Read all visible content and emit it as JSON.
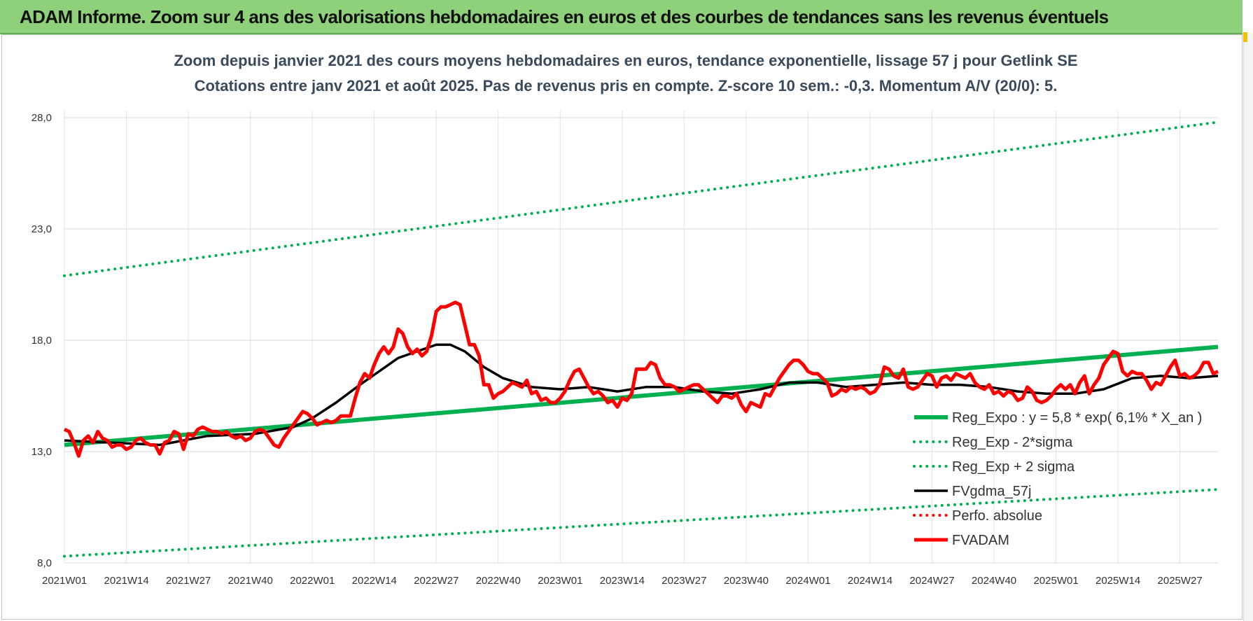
{
  "banner": {
    "title": "ADAM Informe. Zoom sur 4 ans des valorisations hebdomadaires en euros et des courbes de tendances sans les revenus éventuels"
  },
  "chart_data": {
    "type": "line",
    "subtitle_line1": "Zoom depuis janvier 2021 des cours moyens hebdomadaires en euros, tendance exponentielle, lissage 57 j pour Getlink SE",
    "subtitle_line2": "Cotations entre janv 2021 et août 2025.  Pas de revenus pris en compte. Z-score 10 sem.: -0,3. Momentum A/V (20/0): 5.",
    "ylim": [
      8.0,
      28.0
    ],
    "y_ticks": [
      "8,0",
      "13,0",
      "18,0",
      "23,0",
      "28,0"
    ],
    "y_tick_values": [
      8,
      13,
      18,
      23,
      28
    ],
    "x_ticks": [
      "2021W01",
      "2021W14",
      "2021W27",
      "2021W40",
      "2022W01",
      "2022W14",
      "2022W27",
      "2022W40",
      "2023W01",
      "2023W14",
      "2023W27",
      "2023W40",
      "2024W01",
      "2024W14",
      "2024W27",
      "2024W40",
      "2025W01",
      "2025W14",
      "2025W27"
    ],
    "x_tick_weeks": [
      0,
      13,
      26,
      39,
      52,
      65,
      78,
      91,
      104,
      117,
      130,
      143,
      156,
      169,
      182,
      195,
      208,
      221,
      234
    ],
    "n_weeks": 243,
    "grid": true,
    "legend_placement": "bottom-right",
    "series": [
      {
        "name": "Reg_Expo : y = 5,8 * exp( 6,1% *  X_an )",
        "color": "#00b050",
        "style": "solid",
        "points": [
          [
            0,
            13.3
          ],
          [
            242,
            17.7
          ]
        ]
      },
      {
        "name": "Reg_Exp - 2*sigma",
        "color": "#00b050",
        "style": "dotted",
        "points": [
          [
            0,
            8.3
          ],
          [
            242,
            11.3
          ]
        ]
      },
      {
        "name": "Reg_Exp + 2 sigma",
        "color": "#00b050",
        "style": "dotted",
        "points": [
          [
            0,
            20.9
          ],
          [
            242,
            27.8
          ]
        ]
      },
      {
        "name": "FVgdma_57j",
        "color": "#000000",
        "style": "solid",
        "points": [
          [
            0,
            13.5
          ],
          [
            10,
            13.4
          ],
          [
            20,
            13.3
          ],
          [
            30,
            13.7
          ],
          [
            40,
            13.8
          ],
          [
            48,
            14.1
          ],
          [
            52,
            14.5
          ],
          [
            57,
            15.2
          ],
          [
            62,
            16.0
          ],
          [
            66,
            16.6
          ],
          [
            70,
            17.2
          ],
          [
            74,
            17.5
          ],
          [
            78,
            17.8
          ],
          [
            81,
            17.8
          ],
          [
            84,
            17.5
          ],
          [
            88,
            16.8
          ],
          [
            92,
            16.3
          ],
          [
            98,
            15.9
          ],
          [
            104,
            15.8
          ],
          [
            110,
            15.9
          ],
          [
            116,
            15.7
          ],
          [
            122,
            15.9
          ],
          [
            128,
            15.9
          ],
          [
            134,
            15.7
          ],
          [
            140,
            15.6
          ],
          [
            146,
            15.8
          ],
          [
            152,
            16.1
          ],
          [
            158,
            16.1
          ],
          [
            164,
            15.9
          ],
          [
            170,
            16.0
          ],
          [
            176,
            16.1
          ],
          [
            182,
            16.0
          ],
          [
            188,
            16.0
          ],
          [
            194,
            15.9
          ],
          [
            200,
            15.7
          ],
          [
            206,
            15.6
          ],
          [
            212,
            15.6
          ],
          [
            218,
            15.8
          ],
          [
            224,
            16.3
          ],
          [
            230,
            16.4
          ],
          [
            236,
            16.3
          ],
          [
            242,
            16.4
          ]
        ]
      },
      {
        "name": "Perfo. absolue",
        "color": "#ff0000",
        "style": "dotted",
        "points": []
      },
      {
        "name": "FVADAM",
        "color": "#ff0000",
        "style": "solid",
        "points": [
          [
            0,
            14.0
          ],
          [
            1,
            13.9
          ],
          [
            2,
            13.4
          ],
          [
            3,
            12.8
          ],
          [
            4,
            13.5
          ],
          [
            5,
            13.7
          ],
          [
            6,
            13.4
          ],
          [
            7,
            13.9
          ],
          [
            8,
            13.6
          ],
          [
            9,
            13.5
          ],
          [
            10,
            13.2
          ],
          [
            11,
            13.3
          ],
          [
            12,
            13.3
          ],
          [
            13,
            13.1
          ],
          [
            14,
            13.2
          ],
          [
            15,
            13.5
          ],
          [
            16,
            13.6
          ],
          [
            17,
            13.4
          ],
          [
            18,
            13.3
          ],
          [
            19,
            13.3
          ],
          [
            20,
            12.9
          ],
          [
            21,
            13.4
          ],
          [
            22,
            13.5
          ],
          [
            23,
            13.9
          ],
          [
            24,
            13.8
          ],
          [
            25,
            13.1
          ],
          [
            26,
            13.8
          ],
          [
            27,
            13.7
          ],
          [
            28,
            14.0
          ],
          [
            29,
            14.1
          ],
          [
            30,
            14.0
          ],
          [
            31,
            13.9
          ],
          [
            32,
            13.9
          ],
          [
            33,
            13.8
          ],
          [
            34,
            13.9
          ],
          [
            35,
            13.7
          ],
          [
            36,
            13.6
          ],
          [
            37,
            13.7
          ],
          [
            38,
            13.5
          ],
          [
            39,
            13.6
          ],
          [
            40,
            13.9
          ],
          [
            41,
            14.0
          ],
          [
            42,
            13.9
          ],
          [
            43,
            13.6
          ],
          [
            44,
            13.3
          ],
          [
            45,
            13.2
          ],
          [
            46,
            13.6
          ],
          [
            47,
            13.9
          ],
          [
            48,
            14.2
          ],
          [
            49,
            14.5
          ],
          [
            50,
            14.8
          ],
          [
            51,
            14.7
          ],
          [
            52,
            14.5
          ],
          [
            53,
            14.2
          ],
          [
            54,
            14.3
          ],
          [
            55,
            14.4
          ],
          [
            56,
            14.3
          ],
          [
            57,
            14.4
          ],
          [
            58,
            14.6
          ],
          [
            59,
            14.6
          ],
          [
            60,
            14.6
          ],
          [
            61,
            15.4
          ],
          [
            62,
            16.1
          ],
          [
            63,
            16.5
          ],
          [
            64,
            16.3
          ],
          [
            65,
            16.9
          ],
          [
            66,
            17.4
          ],
          [
            67,
            17.7
          ],
          [
            68,
            17.4
          ],
          [
            69,
            17.7
          ],
          [
            70,
            18.5
          ],
          [
            71,
            18.3
          ],
          [
            72,
            17.7
          ],
          [
            73,
            17.4
          ],
          [
            74,
            17.6
          ],
          [
            75,
            17.3
          ],
          [
            76,
            17.5
          ],
          [
            77,
            18.2
          ],
          [
            78,
            19.3
          ],
          [
            79,
            19.5
          ],
          [
            80,
            19.5
          ],
          [
            81,
            19.6
          ],
          [
            82,
            19.7
          ],
          [
            83,
            19.6
          ],
          [
            84,
            18.7
          ],
          [
            85,
            17.8
          ],
          [
            86,
            17.8
          ],
          [
            87,
            17.3
          ],
          [
            88,
            16.0
          ],
          [
            89,
            16.0
          ],
          [
            90,
            15.4
          ],
          [
            91,
            15.6
          ],
          [
            92,
            15.7
          ],
          [
            93,
            15.9
          ],
          [
            94,
            16.1
          ],
          [
            95,
            16.0
          ],
          [
            96,
            15.9
          ],
          [
            97,
            16.2
          ],
          [
            98,
            15.6
          ],
          [
            99,
            15.7
          ],
          [
            100,
            15.3
          ],
          [
            101,
            15.4
          ],
          [
            102,
            15.2
          ],
          [
            103,
            15.2
          ],
          [
            104,
            15.4
          ],
          [
            105,
            15.7
          ],
          [
            106,
            16.2
          ],
          [
            107,
            16.6
          ],
          [
            108,
            16.7
          ],
          [
            109,
            16.3
          ],
          [
            110,
            15.9
          ],
          [
            111,
            15.6
          ],
          [
            112,
            15.7
          ],
          [
            113,
            15.5
          ],
          [
            114,
            15.2
          ],
          [
            115,
            15.3
          ],
          [
            116,
            15.0
          ],
          [
            117,
            15.4
          ],
          [
            118,
            15.3
          ],
          [
            119,
            15.6
          ],
          [
            120,
            16.7
          ],
          [
            121,
            16.7
          ],
          [
            122,
            16.7
          ],
          [
            123,
            17.0
          ],
          [
            124,
            16.9
          ],
          [
            125,
            16.3
          ],
          [
            126,
            16.0
          ],
          [
            127,
            16.0
          ],
          [
            128,
            15.9
          ],
          [
            129,
            15.7
          ],
          [
            130,
            15.8
          ],
          [
            131,
            15.9
          ],
          [
            132,
            16.0
          ],
          [
            133,
            16.0
          ],
          [
            134,
            15.8
          ],
          [
            135,
            15.6
          ],
          [
            136,
            15.4
          ],
          [
            137,
            15.2
          ],
          [
            138,
            15.5
          ],
          [
            139,
            15.5
          ],
          [
            140,
            15.4
          ],
          [
            141,
            15.6
          ],
          [
            142,
            15.1
          ],
          [
            143,
            14.8
          ],
          [
            144,
            15.2
          ],
          [
            145,
            15.1
          ],
          [
            146,
            15.0
          ],
          [
            147,
            15.6
          ],
          [
            148,
            15.5
          ],
          [
            149,
            15.9
          ],
          [
            150,
            16.3
          ],
          [
            151,
            16.6
          ],
          [
            152,
            16.9
          ],
          [
            153,
            17.1
          ],
          [
            154,
            17.1
          ],
          [
            155,
            16.9
          ],
          [
            156,
            16.6
          ],
          [
            157,
            16.5
          ],
          [
            158,
            16.5
          ],
          [
            159,
            16.3
          ],
          [
            160,
            16.1
          ],
          [
            161,
            15.5
          ],
          [
            162,
            15.6
          ],
          [
            163,
            15.8
          ],
          [
            164,
            15.7
          ],
          [
            165,
            15.9
          ],
          [
            166,
            15.8
          ],
          [
            167,
            15.9
          ],
          [
            168,
            15.8
          ],
          [
            169,
            15.6
          ],
          [
            170,
            15.7
          ],
          [
            171,
            16.0
          ],
          [
            172,
            16.8
          ],
          [
            173,
            16.7
          ],
          [
            174,
            16.4
          ],
          [
            175,
            16.3
          ],
          [
            176,
            16.7
          ],
          [
            177,
            15.9
          ],
          [
            178,
            15.8
          ],
          [
            179,
            15.9
          ],
          [
            180,
            16.2
          ],
          [
            181,
            16.5
          ],
          [
            182,
            16.4
          ],
          [
            183,
            15.9
          ],
          [
            184,
            16.3
          ],
          [
            185,
            16.4
          ],
          [
            186,
            16.2
          ],
          [
            187,
            16.5
          ],
          [
            188,
            16.4
          ],
          [
            189,
            16.3
          ],
          [
            190,
            16.5
          ],
          [
            191,
            16.1
          ],
          [
            192,
            15.9
          ],
          [
            193,
            15.8
          ],
          [
            194,
            16.0
          ],
          [
            195,
            15.6
          ],
          [
            196,
            15.7
          ],
          [
            197,
            15.5
          ],
          [
            198,
            15.7
          ],
          [
            199,
            15.6
          ],
          [
            200,
            15.3
          ],
          [
            201,
            15.4
          ],
          [
            202,
            15.9
          ],
          [
            203,
            15.7
          ],
          [
            204,
            15.3
          ],
          [
            205,
            15.2
          ],
          [
            206,
            15.3
          ],
          [
            207,
            15.5
          ],
          [
            208,
            15.8
          ],
          [
            209,
            16.0
          ],
          [
            210,
            15.8
          ],
          [
            211,
            16.0
          ],
          [
            212,
            15.6
          ],
          [
            213,
            16.1
          ],
          [
            214,
            16.4
          ],
          [
            215,
            15.6
          ],
          [
            216,
            16.0
          ],
          [
            217,
            16.3
          ],
          [
            218,
            16.9
          ],
          [
            219,
            17.2
          ],
          [
            220,
            17.5
          ],
          [
            221,
            17.4
          ],
          [
            222,
            16.6
          ],
          [
            223,
            16.4
          ],
          [
            224,
            16.6
          ],
          [
            225,
            16.5
          ],
          [
            226,
            16.5
          ],
          [
            227,
            16.2
          ],
          [
            228,
            15.8
          ],
          [
            229,
            16.1
          ],
          [
            230,
            16.0
          ],
          [
            231,
            16.4
          ],
          [
            232,
            16.8
          ],
          [
            233,
            17.1
          ],
          [
            234,
            16.4
          ],
          [
            235,
            16.5
          ],
          [
            236,
            16.3
          ],
          [
            237,
            16.4
          ],
          [
            238,
            16.6
          ],
          [
            239,
            17.0
          ],
          [
            240,
            17.0
          ],
          [
            241,
            16.5
          ],
          [
            242,
            16.6
          ]
        ]
      }
    ]
  }
}
